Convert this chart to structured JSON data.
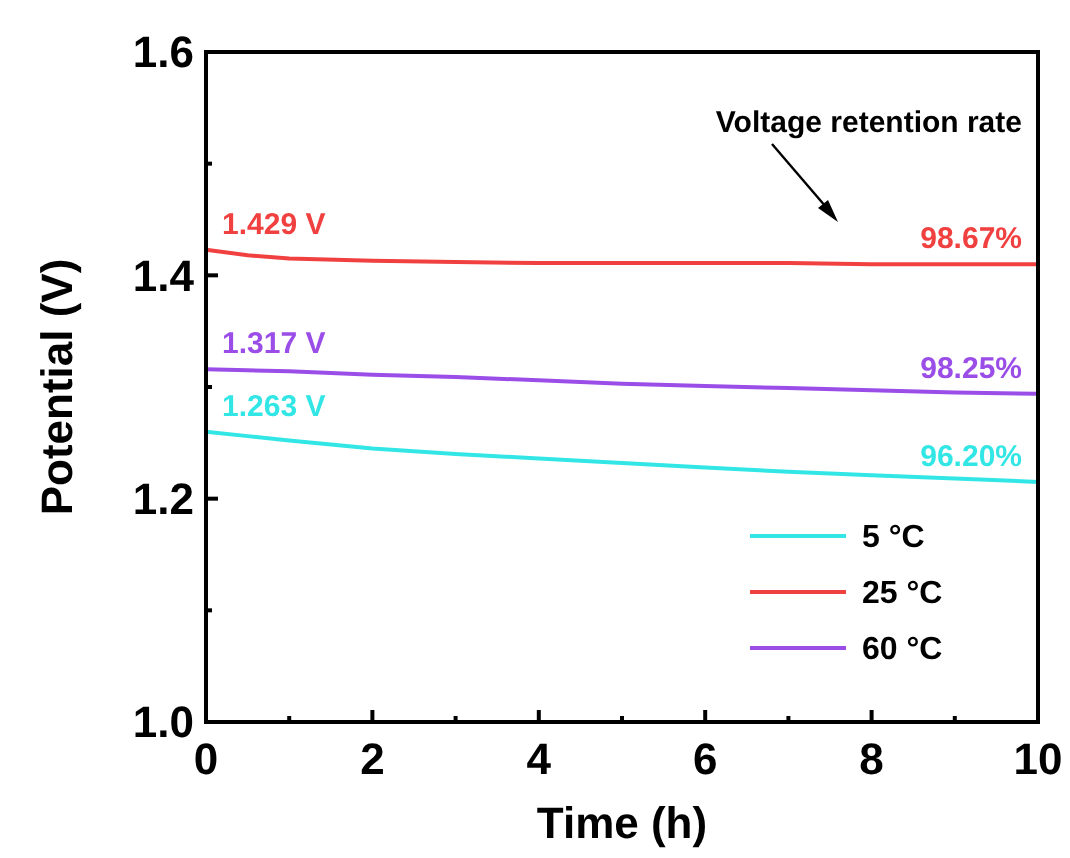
{
  "chart_data": {
    "type": "line",
    "xlabel": "Time (h)",
    "ylabel": "Potential (V)",
    "xlim": [
      0,
      10
    ],
    "ylim": [
      1.0,
      1.6
    ],
    "xticks": [
      0,
      {
        "value": 1,
        "label": null
      },
      2,
      {
        "value": 3,
        "label": null
      },
      4,
      {
        "value": 5,
        "label": null
      },
      6,
      {
        "value": 7,
        "label": null
      },
      8,
      {
        "value": 9,
        "label": null
      },
      10
    ],
    "yticks": [
      {
        "value": 1,
        "label": "1.0"
      },
      {
        "value": 1.1,
        "label": null
      },
      1.2,
      {
        "value": 1.3,
        "label": null
      },
      1.4,
      {
        "value": 1.5,
        "label": null
      },
      1.6
    ],
    "x": [
      0,
      0.5,
      1,
      2,
      3,
      4,
      5,
      6,
      7,
      8,
      9,
      10
    ],
    "series": [
      {
        "name": "5 °C",
        "color": "#33e6e6",
        "values": [
          1.26,
          1.256,
          1.252,
          1.245,
          1.24,
          1.236,
          1.232,
          1.228,
          1.224,
          1.221,
          1.218,
          1.215
        ]
      },
      {
        "name": "25 °C",
        "color": "#f04040",
        "values": [
          1.423,
          1.418,
          1.415,
          1.413,
          1.412,
          1.411,
          1.411,
          1.411,
          1.411,
          1.41,
          1.41,
          1.41
        ]
      },
      {
        "name": "60 °C",
        "color": "#9b4de8",
        "values": [
          1.316,
          1.315,
          1.314,
          1.311,
          1.309,
          1.306,
          1.303,
          1.301,
          1.299,
          1.297,
          1.295,
          1.294
        ]
      }
    ],
    "annotations": [
      "Voltage retention rate",
      "1.429 V",
      "1.317 V",
      "1.263 V",
      "98.67%",
      "98.25%",
      "96.20%"
    ],
    "legend": "bottom right",
    "grid": false,
    "marker": "none",
    "line_style": "solid"
  }
}
